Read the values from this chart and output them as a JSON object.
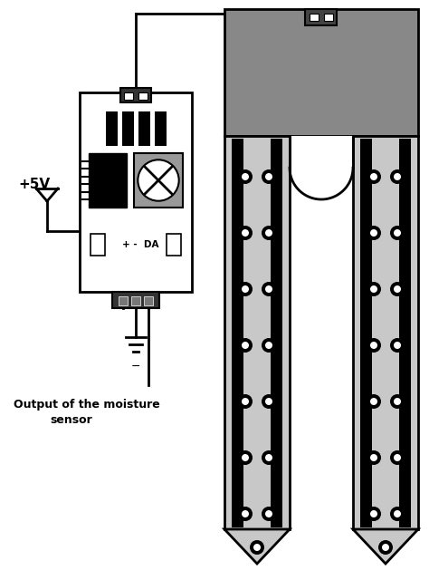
{
  "bg_color": "#ffffff",
  "line_color": "#000000",
  "gray_dark": "#707070",
  "gray_light": "#c8c8c8",
  "gray_header": "#888888",
  "pcb_bg": "#ffffff",
  "label_5v": "+5V",
  "label_output": "Output of the moisture\n      sensor",
  "label_da": "+ -  DA"
}
